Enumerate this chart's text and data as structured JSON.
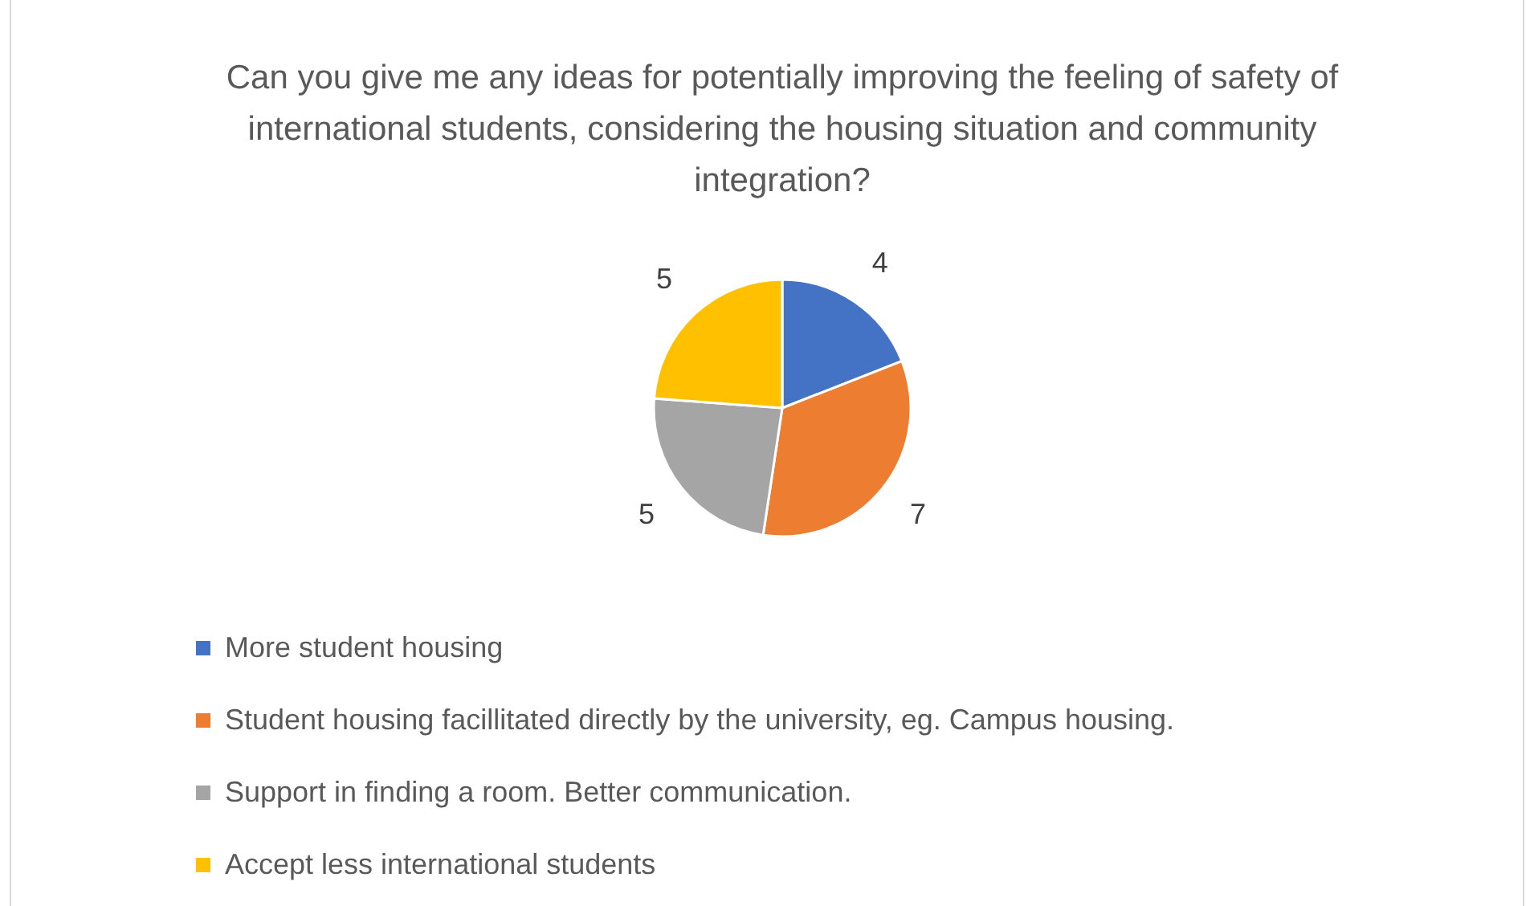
{
  "chart_data": {
    "type": "pie",
    "title": "Can you give me any ideas for potentially improving the feeling of safety of international students, considering the housing situation and community integration?",
    "categories": [
      "More student housing",
      "Student housing facillitated directly by the university, eg. Campus housing.",
      "Support in finding a room. Better communication.",
      "Accept less international students"
    ],
    "values": [
      4,
      7,
      5,
      5
    ],
    "colors": [
      "#4472c4",
      "#ed7d31",
      "#a5a5a5",
      "#ffc000"
    ],
    "data_labels": true,
    "legend": "bottom"
  }
}
